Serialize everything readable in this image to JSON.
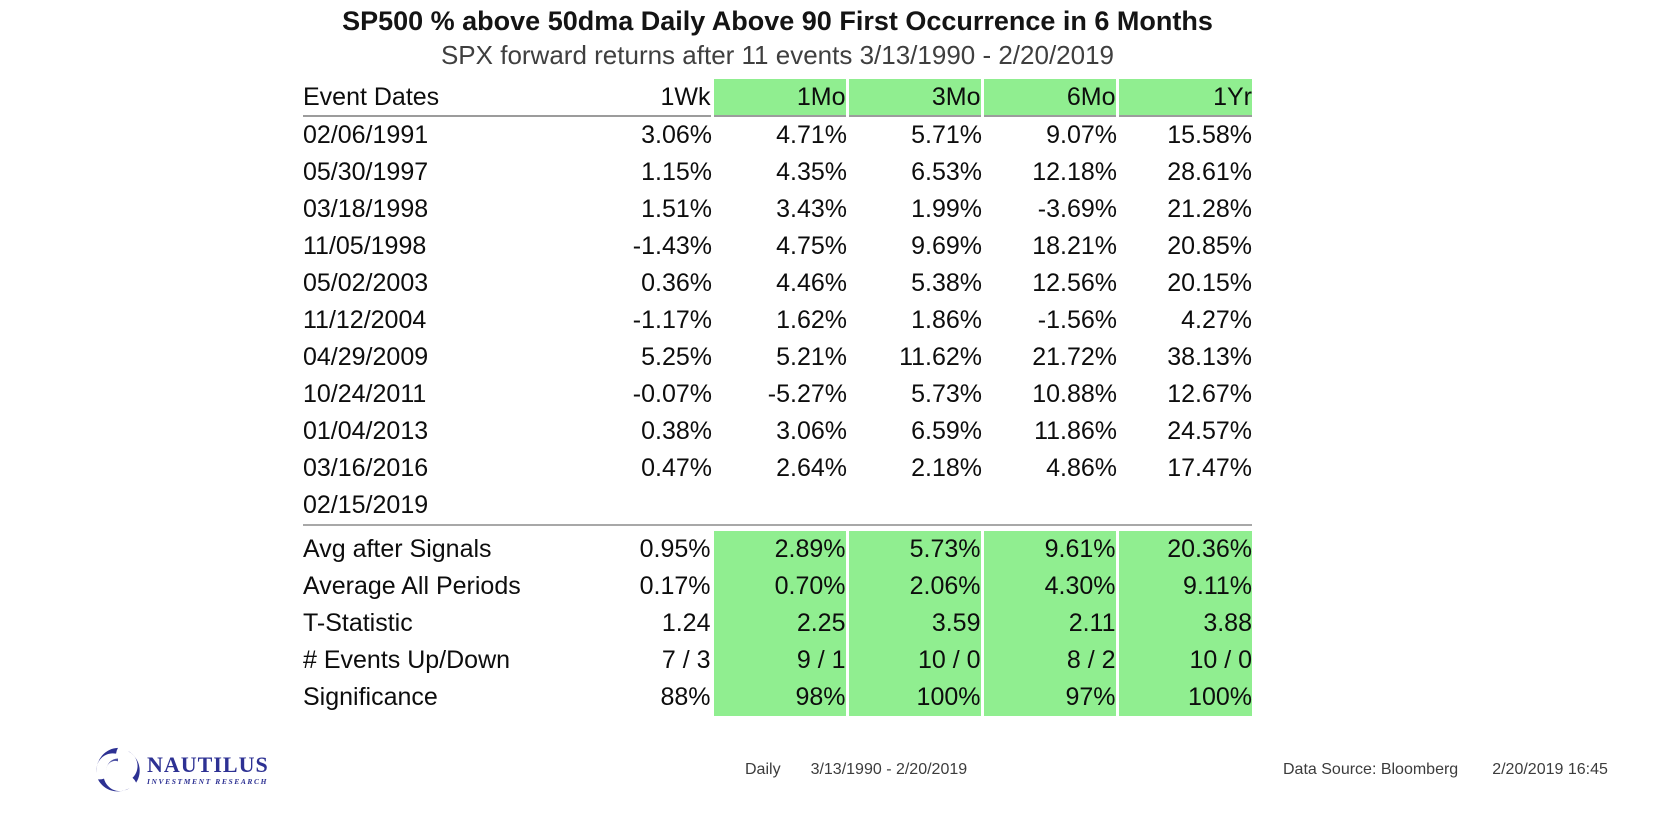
{
  "chart_data": {
    "type": "table",
    "title": "SP500 % above 50dma Daily Above 90 First Occurrence in 6 Months",
    "subtitle": "SPX forward returns after 11 events 3/13/1990 - 2/20/2019",
    "columns": [
      "Event Dates",
      "1Wk",
      "1Mo",
      "3Mo",
      "6Mo",
      "1Yr"
    ],
    "highlighted_columns": [
      "1Mo",
      "3Mo",
      "6Mo",
      "1Yr"
    ],
    "rows": [
      {
        "date": "02/06/1991",
        "values": [
          "3.06%",
          "4.71%",
          "5.71%",
          "9.07%",
          "15.58%"
        ]
      },
      {
        "date": "05/30/1997",
        "values": [
          "1.15%",
          "4.35%",
          "6.53%",
          "12.18%",
          "28.61%"
        ]
      },
      {
        "date": "03/18/1998",
        "values": [
          "1.51%",
          "3.43%",
          "1.99%",
          "-3.69%",
          "21.28%"
        ]
      },
      {
        "date": "11/05/1998",
        "values": [
          "-1.43%",
          "4.75%",
          "9.69%",
          "18.21%",
          "20.85%"
        ]
      },
      {
        "date": "05/02/2003",
        "values": [
          "0.36%",
          "4.46%",
          "5.38%",
          "12.56%",
          "20.15%"
        ]
      },
      {
        "date": "11/12/2004",
        "values": [
          "-1.17%",
          "1.62%",
          "1.86%",
          "-1.56%",
          "4.27%"
        ]
      },
      {
        "date": "04/29/2009",
        "values": [
          "5.25%",
          "5.21%",
          "11.62%",
          "21.72%",
          "38.13%"
        ]
      },
      {
        "date": "10/24/2011",
        "values": [
          "-0.07%",
          "-5.27%",
          "5.73%",
          "10.88%",
          "12.67%"
        ]
      },
      {
        "date": "01/04/2013",
        "values": [
          "0.38%",
          "3.06%",
          "6.59%",
          "11.86%",
          "24.57%"
        ]
      },
      {
        "date": "03/16/2016",
        "values": [
          "0.47%",
          "2.64%",
          "2.18%",
          "4.86%",
          "17.47%"
        ]
      },
      {
        "date": "02/15/2019",
        "values": [
          "",
          "",
          "",
          "",
          ""
        ]
      }
    ],
    "summary_rows": [
      {
        "label": "Avg after Signals",
        "values": [
          "0.95%",
          "2.89%",
          "5.73%",
          "9.61%",
          "20.36%"
        ]
      },
      {
        "label": "Average All Periods",
        "values": [
          "0.17%",
          "0.70%",
          "2.06%",
          "4.30%",
          "9.11%"
        ]
      },
      {
        "label": "T-Statistic",
        "values": [
          "1.24",
          "2.25",
          "3.59",
          "2.11",
          "3.88"
        ]
      },
      {
        "label": "# Events Up/Down",
        "values": [
          "7 / 3",
          "9 / 1",
          "10 / 0",
          "8 / 2",
          "10 / 0"
        ]
      },
      {
        "label": "Significance",
        "values": [
          "88%",
          "98%",
          "100%",
          "97%",
          "100%"
        ]
      }
    ],
    "layout_hints": {
      "grid": "off",
      "highlight_color": "#90EE90",
      "rule_color": "#9c9c9c"
    }
  },
  "footer": {
    "logo": {
      "name": "NAUTILUS",
      "tagline": "INVESTMENT RESEARCH"
    },
    "frequency": "Daily",
    "date_range": "3/13/1990 - 2/20/2019",
    "data_source": "Data Source: Bloomberg",
    "timestamp": "2/20/2019 16:45"
  },
  "icons": {
    "nautilus_swirl": "triple-crescent-spiral"
  },
  "colors": {
    "highlight_green": "#90EE90",
    "logo_navy": "#2d3193",
    "rule_gray": "#9c9c9c",
    "subtitle_gray": "#3f3f3f"
  }
}
